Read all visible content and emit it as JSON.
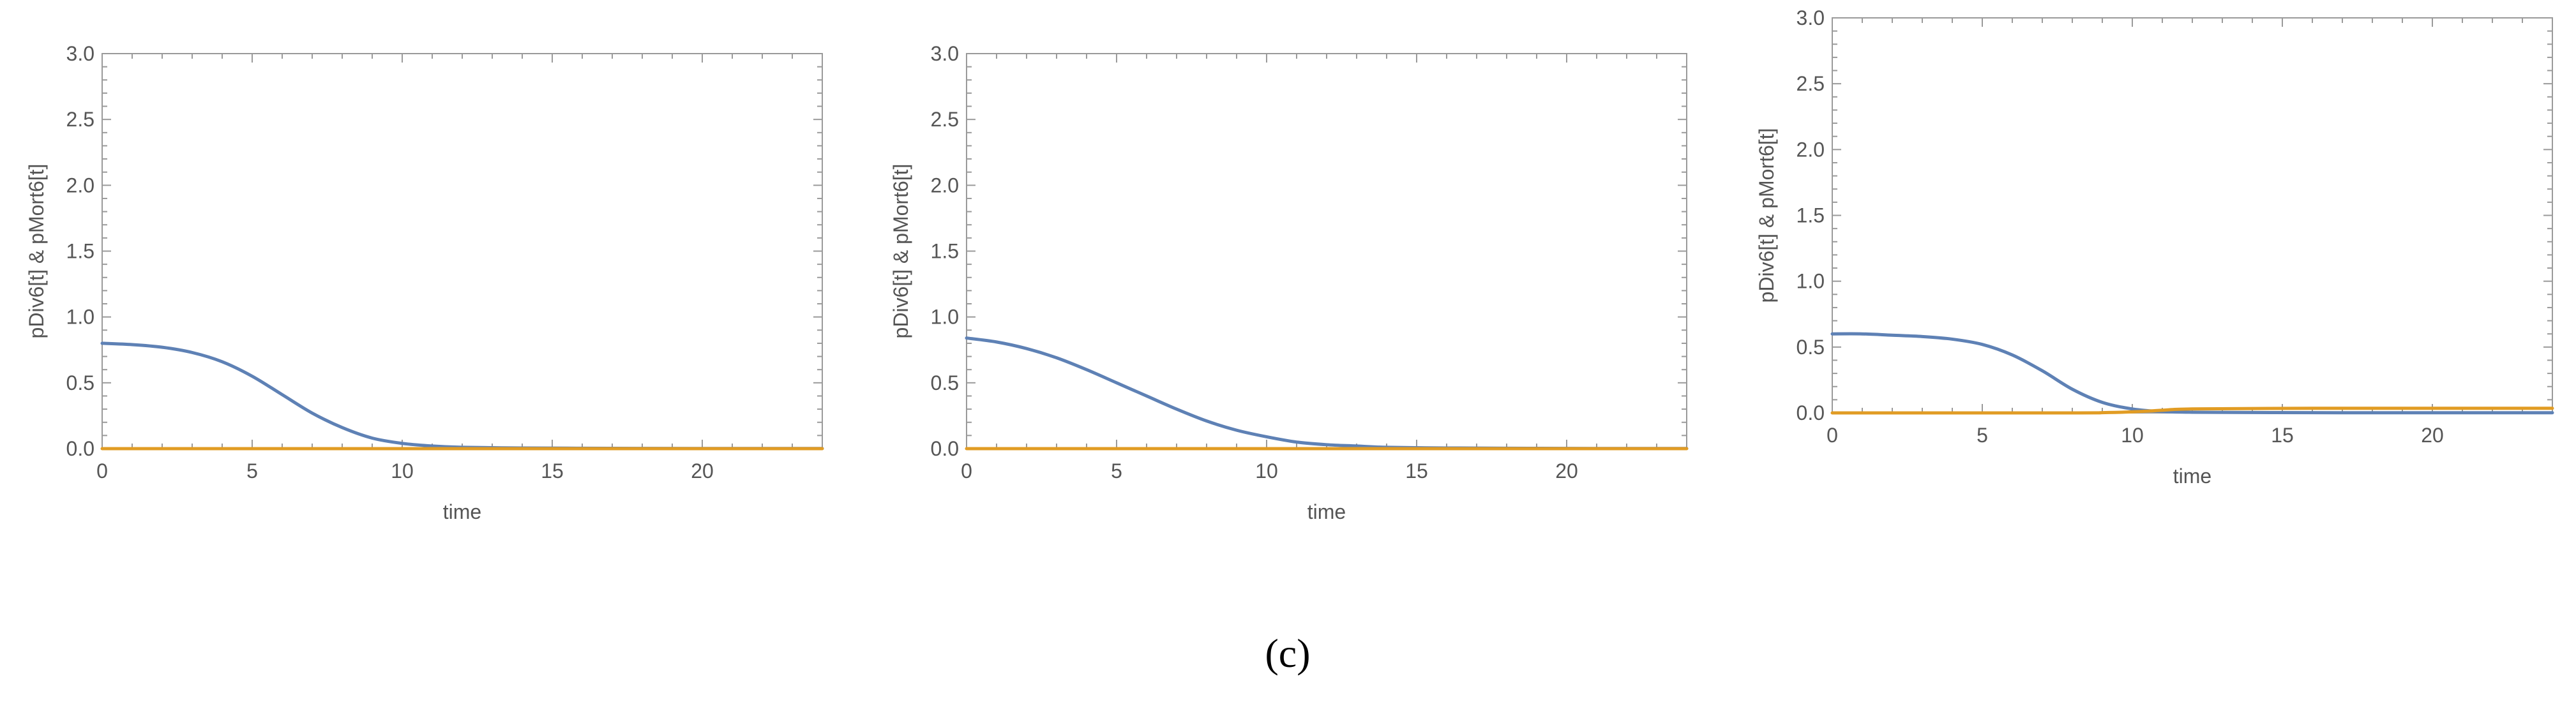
{
  "chart_data": [
    {
      "type": "line",
      "xlabel": "time",
      "ylabel": "pDiv6[t] & pMort6[t]",
      "xlim": [
        0,
        24
      ],
      "ylim": [
        0,
        3.0
      ],
      "x_ticks": [
        "0",
        "5",
        "10",
        "15",
        "20"
      ],
      "y_ticks": [
        "0.0",
        "0.5",
        "1.0",
        "1.5",
        "2.0",
        "2.5",
        "3.0"
      ],
      "grid": false,
      "series": [
        {
          "color": "#5e81b5",
          "x": [
            0,
            1,
            2,
            3,
            4,
            5,
            6,
            7,
            8,
            9,
            10,
            11,
            12,
            14,
            16,
            18,
            20,
            22,
            24
          ],
          "y": [
            0.8,
            0.79,
            0.77,
            0.73,
            0.66,
            0.55,
            0.41,
            0.27,
            0.16,
            0.08,
            0.04,
            0.02,
            0.01,
            0.005,
            0.003,
            0.002,
            0.001,
            0.001,
            0.001
          ]
        },
        {
          "color": "#e19c24",
          "x": [
            0,
            24
          ],
          "y": [
            0.0,
            0.0
          ]
        }
      ]
    },
    {
      "type": "line",
      "xlabel": "time",
      "ylabel": "pDiv6[t] & pMort6[t]",
      "xlim": [
        0,
        24
      ],
      "ylim": [
        0,
        3.0
      ],
      "x_ticks": [
        "0",
        "5",
        "10",
        "15",
        "20"
      ],
      "y_ticks": [
        "0.0",
        "0.5",
        "1.0",
        "1.5",
        "2.0",
        "2.5",
        "3.0"
      ],
      "grid": false,
      "series": [
        {
          "color": "#5e81b5",
          "x": [
            0,
            1,
            2,
            3,
            4,
            5,
            6,
            7,
            8,
            9,
            10,
            11,
            12,
            13,
            14,
            16,
            18,
            20,
            22,
            24
          ],
          "y": [
            0.84,
            0.81,
            0.76,
            0.69,
            0.6,
            0.5,
            0.4,
            0.3,
            0.21,
            0.14,
            0.09,
            0.05,
            0.03,
            0.02,
            0.01,
            0.005,
            0.003,
            0.002,
            0.001,
            0.001
          ]
        },
        {
          "color": "#e19c24",
          "x": [
            0,
            24
          ],
          "y": [
            0.0,
            0.0
          ]
        }
      ]
    },
    {
      "type": "line",
      "xlabel": "time",
      "ylabel": "pDiv6[t] & pMort6[t]",
      "xlim": [
        0,
        24
      ],
      "ylim": [
        0,
        3.0
      ],
      "x_ticks": [
        "0",
        "5",
        "10",
        "15",
        "20"
      ],
      "y_ticks": [
        "0.0",
        "0.5",
        "1.0",
        "1.5",
        "2.0",
        "2.5",
        "3.0"
      ],
      "grid": false,
      "series": [
        {
          "color": "#5e81b5",
          "x": [
            0,
            1,
            2,
            3,
            4,
            5,
            6,
            7,
            8,
            9,
            10,
            11,
            12,
            14,
            16,
            18,
            20,
            22,
            24
          ],
          "y": [
            0.6,
            0.6,
            0.59,
            0.58,
            0.56,
            0.52,
            0.44,
            0.32,
            0.18,
            0.08,
            0.03,
            0.01,
            0.005,
            0.003,
            0.002,
            0.001,
            0.001,
            0.001,
            0.001
          ]
        },
        {
          "color": "#e19c24",
          "x": [
            0,
            8,
            9,
            10,
            11,
            12,
            16,
            20,
            24
          ],
          "y": [
            0.0,
            0.0,
            0.002,
            0.008,
            0.02,
            0.03,
            0.035,
            0.035,
            0.035
          ]
        }
      ]
    }
  ],
  "caption": "(c)"
}
